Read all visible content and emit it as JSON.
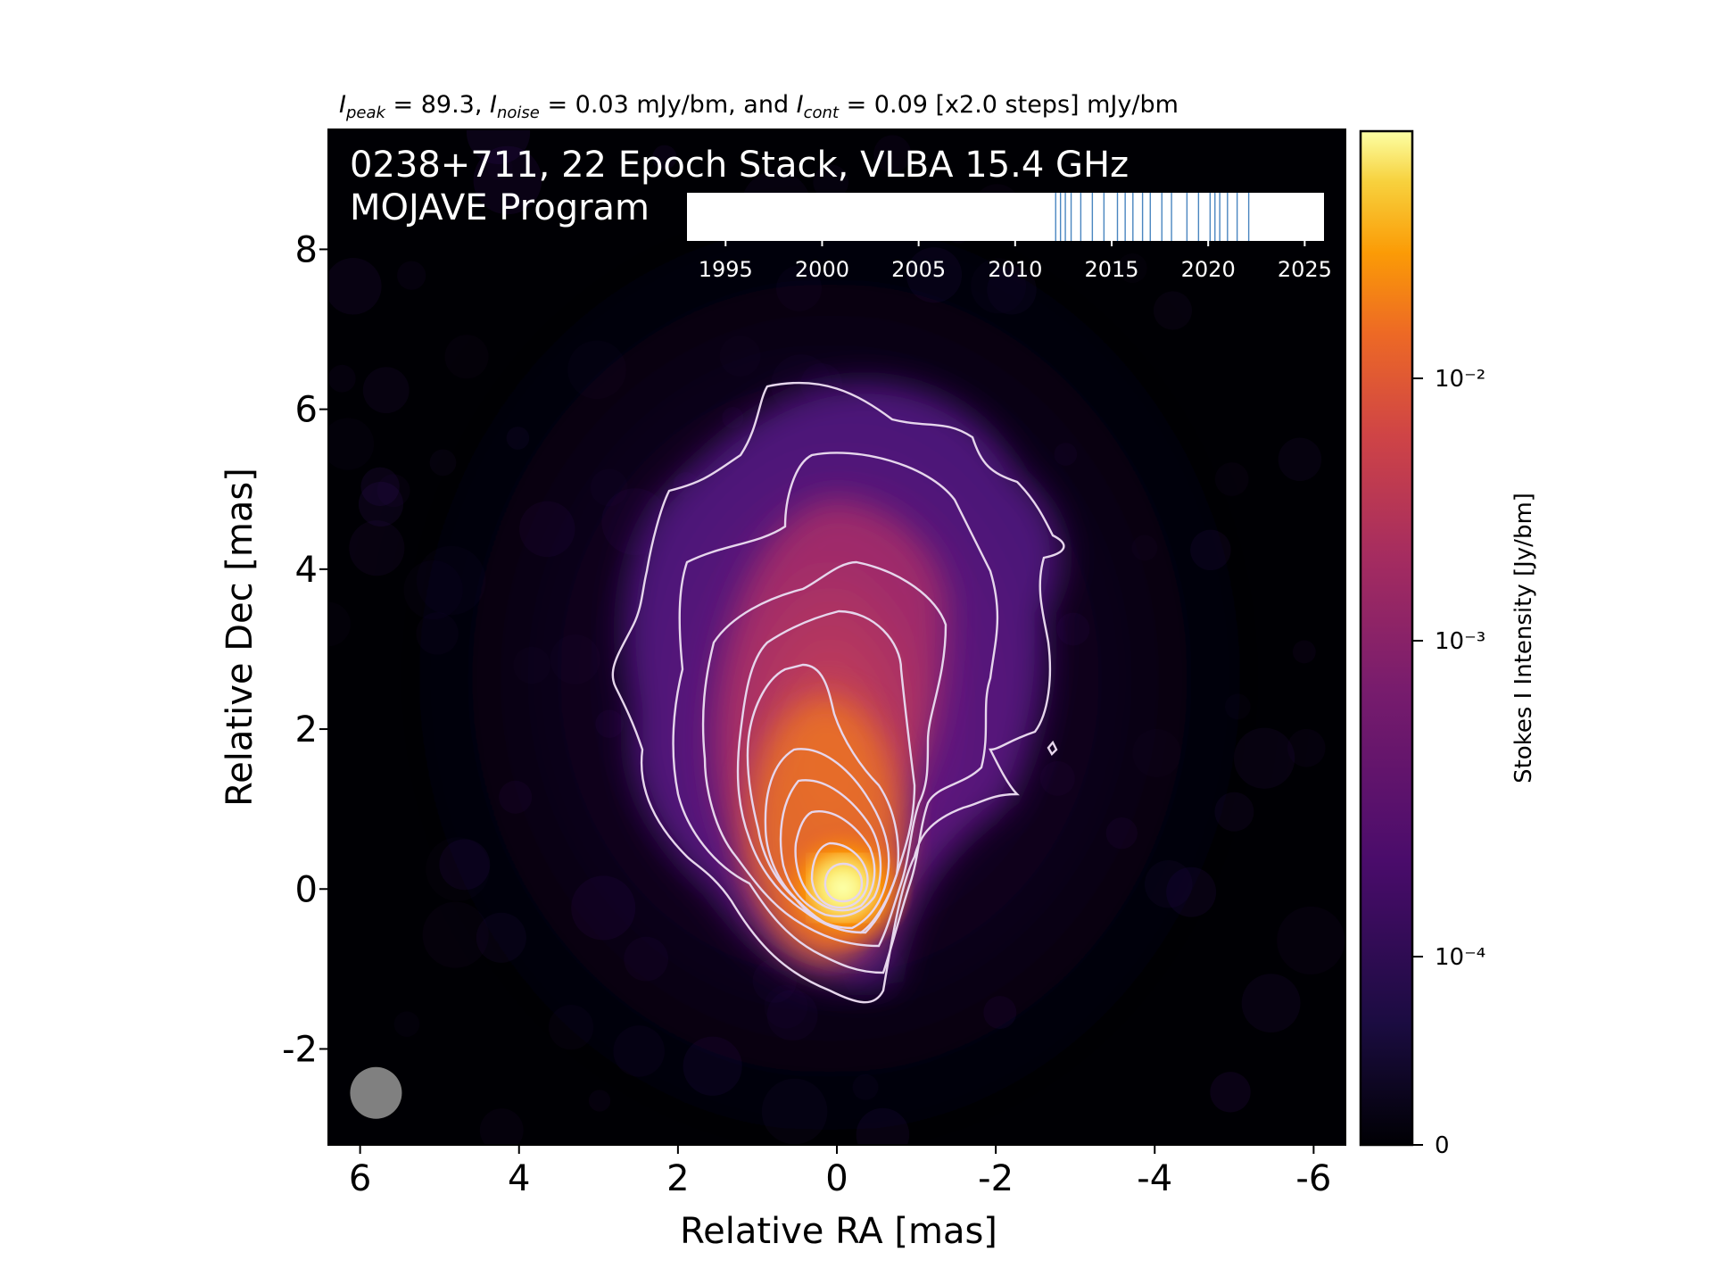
{
  "chart_data": {
    "type": "heatmap",
    "title_parts": {
      "peak_symbol": "I",
      "peak_sub": "peak",
      "peak_text": " = 89.3, ",
      "noise_symbol": "I",
      "noise_sub": "noise",
      "noise_text": " = 0.03 mJy/bm, and ",
      "cont_symbol": "I",
      "cont_sub": "cont",
      "cont_text": " = 0.09 [x2.0 steps] mJy/bm"
    },
    "label_line1": "0238+711, 22 Epoch Stack, VLBA 15.4 GHz",
    "label_line2": "MOJAVE Program",
    "xlabel": "Relative RA [mas]",
    "ylabel": "Relative Dec [mas]",
    "xlim": [
      6.4,
      -6.4
    ],
    "ylim": [
      -3.2,
      9.5
    ],
    "x_ticks": [
      6,
      4,
      2,
      0,
      -2,
      -4,
      -6
    ],
    "x_tick_labels": [
      "6",
      "4",
      "2",
      "0",
      "-2",
      "-4",
      "-6"
    ],
    "y_ticks": [
      8,
      6,
      4,
      2,
      0,
      -2
    ],
    "y_tick_labels": [
      "8",
      "6",
      "4",
      "2",
      "0",
      "-2"
    ],
    "grid": false,
    "colormap": "inferno",
    "colorbar": {
      "label": "Stokes I Intensity [Jy/bm]",
      "scale": "log",
      "ticks": [
        0,
        0.0001,
        0.001,
        0.01
      ],
      "tick_labels": [
        "0",
        "10⁻⁴",
        "10⁻³",
        "10⁻²"
      ]
    },
    "contour_levels_mJy": [
      0.09,
      0.18,
      0.36,
      0.72,
      1.44,
      2.88,
      5.76,
      11.52,
      23.04,
      46.08
    ],
    "contour_color": "#e6d6ec",
    "beam": {
      "x": 5.8,
      "y": -2.55,
      "color": "#808080"
    },
    "epoch_timeline": {
      "xlim": [
        1993,
        2026
      ],
      "ticks": [
        1995,
        2000,
        2005,
        2010,
        2015,
        2020,
        2025
      ],
      "tick_labels": [
        "1995",
        "2000",
        "2005",
        "2010",
        "2015",
        "2020",
        "2025"
      ],
      "epochs": [
        2012.1,
        2012.35,
        2012.6,
        2012.9,
        2013.4,
        2014.0,
        2014.6,
        2015.3,
        2015.7,
        2016.1,
        2016.6,
        2017.0,
        2017.6,
        2018.1,
        2018.9,
        2019.5,
        2020.1,
        2020.35,
        2020.6,
        2021.0,
        2021.5,
        2022.1
      ],
      "line_color": "#4a86c0"
    }
  }
}
